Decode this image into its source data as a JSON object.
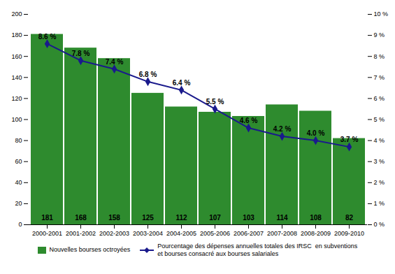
{
  "chart_data": {
    "type": "bar",
    "categories": [
      "2000-2001",
      "2001-2002",
      "2002-2003",
      "2003-2004",
      "2004-2005",
      "2005-2006",
      "2006-2007",
      "2007-2008",
      "2008-2009",
      "2009-2010"
    ],
    "series": [
      {
        "name": "Nouvelles bourses octroyées",
        "type": "bar",
        "color": "#2e8b2e",
        "values": [
          181,
          168,
          158,
          125,
          112,
          107,
          103,
          114,
          108,
          82
        ]
      },
      {
        "name": "Pourcentage des dépenses annuelles totales des IRSC  en subventions\net bourses consacré aux bourses salariales",
        "type": "line",
        "axis": "y2",
        "color": "#1a1a8c",
        "marker": "diamond",
        "values": [
          8.6,
          7.8,
          7.4,
          6.8,
          6.4,
          5.5,
          4.6,
          4.2,
          4.0,
          3.7
        ],
        "value_labels": [
          "8.6 %",
          "7.8 %",
          "7.4 %",
          "6.8 %",
          "6.4 %",
          "5.5 %",
          "4.6 %",
          "4.2 %",
          "4.0 %",
          "3.7 %"
        ]
      }
    ],
    "ylim": [
      0,
      200
    ],
    "yticks": [
      0,
      20,
      40,
      60,
      80,
      100,
      120,
      140,
      160,
      180,
      200
    ],
    "y2lim": [
      0,
      10
    ],
    "y2ticks": [
      {
        "value": 0,
        "label": "0 %"
      },
      {
        "value": 1,
        "label": "1 %"
      },
      {
        "value": 2,
        "label": "2 %"
      },
      {
        "value": 3,
        "label": "3 %"
      },
      {
        "value": 4,
        "label": "4 %"
      },
      {
        "value": 5,
        "label": "5 %"
      },
      {
        "value": 6,
        "label": "6 %"
      },
      {
        "value": 7,
        "label": "7 %"
      },
      {
        "value": 8,
        "label": "8 %"
      },
      {
        "value": 9,
        "label": "9 %"
      },
      {
        "value": 10,
        "label": "10 %"
      }
    ],
    "data_labels": true,
    "legend": "bottom",
    "grid": false
  }
}
